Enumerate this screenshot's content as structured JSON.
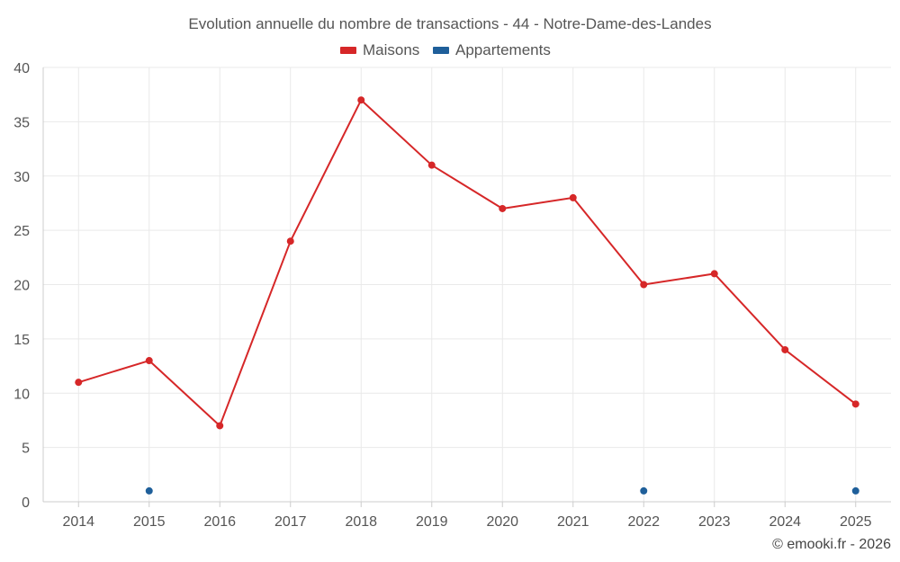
{
  "chart_data": {
    "type": "line",
    "title": "Evolution annuelle du nombre de transactions - 44 - Notre-Dame-des-Landes",
    "categories": [
      "2014",
      "2015",
      "2016",
      "2017",
      "2018",
      "2019",
      "2020",
      "2021",
      "2022",
      "2023",
      "2024",
      "2025"
    ],
    "series": [
      {
        "name": "Maisons",
        "color": "#d62728",
        "show_line": true,
        "values": [
          11,
          13,
          7,
          24,
          37,
          31,
          27,
          28,
          20,
          21,
          14,
          9
        ]
      },
      {
        "name": "Appartements",
        "color": "#1f5f9a",
        "show_line": false,
        "values": [
          null,
          1,
          null,
          null,
          null,
          null,
          null,
          null,
          1,
          null,
          null,
          1
        ]
      }
    ],
    "ylim": [
      0,
      40
    ],
    "yticks": [
      0,
      5,
      10,
      15,
      20,
      25,
      30,
      35,
      40
    ],
    "xlabel": "",
    "ylabel": "",
    "grid": true,
    "legend_position": "top-center"
  },
  "credit": "© emooki.fr - 2026"
}
